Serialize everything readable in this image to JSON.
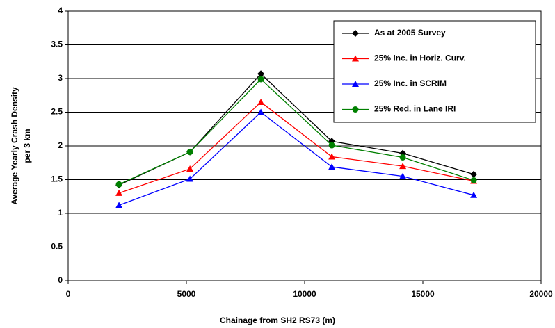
{
  "chart_data": {
    "type": "line",
    "ylabel": [
      "Average Yearly Crash Density",
      "per 3 km"
    ],
    "xlabel": "Chainage from SH2 RS73 (m)",
    "x": [
      2150,
      5150,
      8150,
      11150,
      14150,
      17150
    ],
    "series": [
      {
        "name": "As at 2005 Survey",
        "color": "#000000",
        "marker": "diamond",
        "values": [
          1.42,
          1.91,
          3.07,
          2.07,
          1.89,
          1.58
        ]
      },
      {
        "name": "25% Inc. in Horiz. Curv.",
        "color": "#ff0000",
        "marker": "triangle",
        "values": [
          1.3,
          1.66,
          2.65,
          1.84,
          1.7,
          1.48
        ]
      },
      {
        "name": "25% Inc. in SCRIM",
        "color": "#0000ff",
        "marker": "triangle",
        "values": [
          1.12,
          1.51,
          2.5,
          1.69,
          1.55,
          1.27
        ]
      },
      {
        "name": "25% Red. in Lane IRI",
        "color": "#008000",
        "marker": "circle",
        "values": [
          1.43,
          1.91,
          2.99,
          2.01,
          1.83,
          1.49
        ]
      }
    ],
    "xlim": [
      0,
      20000
    ],
    "xticks": [
      0,
      5000,
      10000,
      15000,
      20000
    ],
    "ylim": [
      0,
      4
    ],
    "yticks": [
      0,
      0.5,
      1,
      1.5,
      2,
      2.5,
      3,
      3.5,
      4
    ],
    "grid": true,
    "legend": "top-right"
  }
}
